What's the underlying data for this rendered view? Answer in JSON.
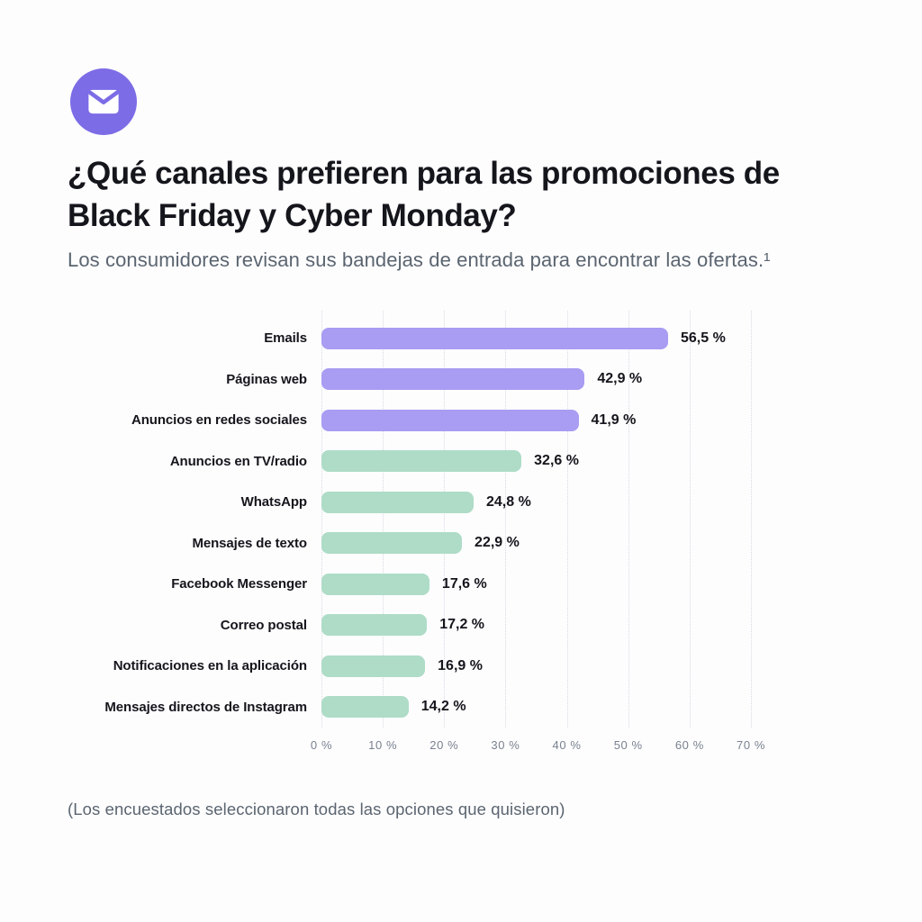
{
  "header": {
    "icon": "email-icon",
    "icon_bg": "#7c6ce6",
    "title": "¿Qué canales prefieren para las promociones de Black Friday y Cyber Monday?",
    "subtitle": "Los consumidores revisan sus bandejas de entrada para encontrar las ofertas.¹"
  },
  "chart_data": {
    "type": "bar",
    "orientation": "horizontal",
    "title": "¿Qué canales prefieren para las promociones de Black Friday y Cyber Monday?",
    "categories": [
      "Emails",
      "Páginas web",
      "Anuncios en redes sociales",
      "Anuncios en TV/radio",
      "WhatsApp",
      "Mensajes de texto",
      "Facebook Messenger",
      "Correo postal",
      "Notificaciones en la aplicación",
      "Mensajes directos de Instagram"
    ],
    "values": [
      56.5,
      42.9,
      41.9,
      32.6,
      24.8,
      22.9,
      17.6,
      17.2,
      16.9,
      14.2
    ],
    "value_labels": [
      "56,5 %",
      "42,9 %",
      "41,9 %",
      "32,6 %",
      "24,8 %",
      "22,9 %",
      "17,6 %",
      "17,2 %",
      "16,9 %",
      "14,2 %"
    ],
    "bar_colors": [
      "#a89cf3",
      "#a89cf3",
      "#a89cf3",
      "#aedcc7",
      "#aedcc7",
      "#aedcc7",
      "#aedcc7",
      "#aedcc7",
      "#aedcc7",
      "#aedcc7"
    ],
    "colors": {
      "purple": "#a89cf3",
      "green": "#aedcc7"
    },
    "axis": {
      "min": 0,
      "max": 70,
      "tick_labels": [
        "0 %",
        "10 %",
        "20 %",
        "30 %",
        "40 %",
        "50 %",
        "60 %",
        "70 %"
      ]
    },
    "grid": "dotted-vertical",
    "xlabel": "",
    "ylabel": ""
  },
  "footer": {
    "note": "(Los encuestados seleccionaron todas las opciones que quisieron)"
  }
}
